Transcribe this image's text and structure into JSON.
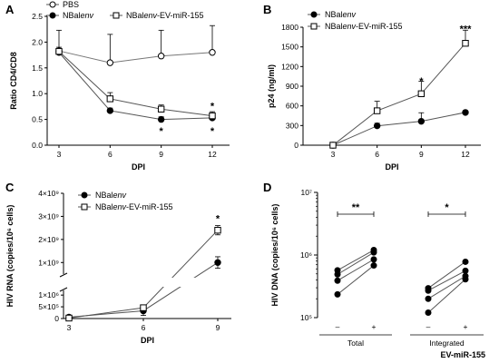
{
  "colors": {
    "ink": "#000000",
    "background": "#ffffff",
    "filled_marker": "#000000",
    "open_marker": "#ffffff",
    "pbs_line": "#777777",
    "line": "#555555"
  },
  "chart_data": [
    {
      "id": "A",
      "panel_label": "A",
      "type": "line",
      "xlabel": "DPI",
      "ylabel": "Ratio CD4/CD8",
      "x": [
        3,
        6,
        9,
        12
      ],
      "xticks": [
        "3",
        "6",
        "9",
        "12"
      ],
      "ylim": [
        0,
        2.5
      ],
      "yticks": [
        "0.0",
        "0.5",
        "1.0",
        "1.5",
        "2.0",
        "2.5"
      ],
      "legend_position": "top",
      "series": [
        {
          "name": "PBS",
          "legend_pre": "PBS",
          "legend_italic": "",
          "legend_post": "",
          "marker": "open-circle",
          "values": [
            1.83,
            1.6,
            1.73,
            1.8
          ],
          "errors": [
            0.4,
            0.55,
            0.5,
            0.52
          ]
        },
        {
          "name": "NBalenv",
          "legend_pre": "NBal",
          "legend_italic": "env",
          "legend_post": "",
          "marker": "filled-circle",
          "values": [
            1.8,
            0.67,
            0.5,
            0.53
          ],
          "errors": [
            0.05,
            0.05,
            0.05,
            0.05
          ]
        },
        {
          "name": "NBalenv-EV-miR-155",
          "legend_pre": "NBal",
          "legend_italic": "env",
          "legend_post": "-EV-miR-155",
          "marker": "open-square",
          "values": [
            1.82,
            0.9,
            0.7,
            0.57
          ],
          "errors": [
            0.08,
            0.12,
            0.08,
            0.08
          ]
        }
      ],
      "annotations": [
        {
          "text": "*",
          "x": 9,
          "y": 0.3
        },
        {
          "text": "*",
          "x": 12,
          "y": 0.78
        },
        {
          "text": "*",
          "x": 12,
          "y": 0.3
        }
      ]
    },
    {
      "id": "B",
      "panel_label": "B",
      "type": "line",
      "xlabel": "DPI",
      "ylabel": "p24 (ng/ml)",
      "x": [
        3,
        6,
        9,
        12
      ],
      "xticks": [
        "3",
        "6",
        "9",
        "12"
      ],
      "ylim": [
        0,
        1800
      ],
      "yticks": [
        "0",
        "300",
        "600",
        "900",
        "1200",
        "1500",
        "1800"
      ],
      "legend_position": "top-left",
      "series": [
        {
          "name": "NBalenv",
          "legend_pre": "NBal",
          "legend_italic": "env",
          "legend_post": "",
          "marker": "filled-circle",
          "values": [
            0,
            295,
            365,
            500
          ],
          "errors": [
            0,
            40,
            130,
            20
          ]
        },
        {
          "name": "NBalenv-EV-miR-155",
          "legend_pre": "NBal",
          "legend_italic": "env",
          "legend_post": "-EV-miR-155",
          "marker": "open-square",
          "values": [
            0,
            525,
            785,
            1555
          ],
          "errors": [
            0,
            145,
            190,
            200
          ]
        }
      ],
      "annotations": [
        {
          "text": "*",
          "x": 9,
          "y": 1000
        },
        {
          "text": "***",
          "x": 12,
          "y": 1790
        }
      ]
    },
    {
      "id": "C",
      "panel_label": "C",
      "type": "line",
      "xlabel": "DPI",
      "ylabel": "HIV RNA (copies/10⁶ cells)",
      "x": [
        3,
        6,
        9
      ],
      "xticks": [
        "3",
        "6",
        "9"
      ],
      "broken_y_axis": true,
      "lower_ylim": [
        0,
        1200000
      ],
      "lower_yticks": [
        {
          "v": 0,
          "label": "0"
        },
        {
          "v": 500000,
          "label": "5×10⁵"
        },
        {
          "v": 1000000,
          "label": "1×10⁶"
        }
      ],
      "upper_ylim": [
        500000000,
        4000000000
      ],
      "upper_yticks": [
        {
          "v": 1000000000,
          "label": "1×10⁹"
        },
        {
          "v": 2000000000,
          "label": "2×10⁹"
        },
        {
          "v": 3000000000,
          "label": "3×10⁹"
        },
        {
          "v": 4000000000,
          "label": "4×10⁹"
        }
      ],
      "legend_position": "top-left",
      "series": [
        {
          "name": "NBalenv",
          "legend_pre": "NBal",
          "legend_italic": "env",
          "legend_post": "",
          "marker": "filled-circle",
          "values": [
            60000,
            330000,
            1000000000
          ],
          "errors": [
            20000,
            200000,
            250000000
          ]
        },
        {
          "name": "NBalenv-EV-miR-155",
          "legend_pre": "NBal",
          "legend_italic": "env",
          "legend_post": "-EV-miR-155",
          "marker": "open-square",
          "values": [
            20000,
            460000,
            2400000000
          ],
          "errors": [
            10000,
            120000,
            200000000
          ]
        }
      ],
      "annotations": [
        {
          "text": "*",
          "x": 9,
          "y": 2950000000
        }
      ]
    },
    {
      "id": "D",
      "panel_label": "D",
      "type": "scatter",
      "ylabel": "HIV DNA (copies/10⁶ cells)",
      "xlabel": "EV-miR-155",
      "yscale": "log",
      "ylim": [
        100000,
        10000000
      ],
      "yticks": [
        {
          "v": 100000,
          "label": "10⁵"
        },
        {
          "v": 1000000,
          "label": "10⁶"
        },
        {
          "v": 10000000,
          "label": "10⁷"
        }
      ],
      "groups": [
        {
          "name": "Total",
          "minus_label": "–",
          "plus_label": "+",
          "pairs": [
            [
              570000,
              1200000
            ],
            [
              490000,
              1100000
            ],
            [
              390000,
              850000
            ],
            [
              235000,
              680000
            ]
          ],
          "annotation": "**"
        },
        {
          "name": "Integrated",
          "minus_label": "–",
          "plus_label": "+",
          "pairs": [
            [
              295000,
              780000
            ],
            [
              270000,
              560000
            ],
            [
              200000,
              460000
            ],
            [
              120000,
              410000
            ]
          ],
          "annotation": "*"
        }
      ]
    }
  ]
}
